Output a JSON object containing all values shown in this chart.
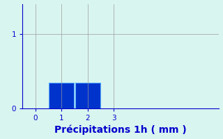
{
  "xlabel": "Précipitations 1h ( mm )",
  "xlabel_color": "#0000cc",
  "bar_values": [
    0.35,
    0.35
  ],
  "bar_positions": [
    1.0,
    2.0
  ],
  "bar_color": "#0033cc",
  "bar_width": 0.95,
  "bar_edge_color": "#55aaff",
  "xlim": [
    -0.5,
    7.0
  ],
  "ylim": [
    0,
    1.4
  ],
  "yticks": [
    0,
    1
  ],
  "xticks": [
    0,
    1,
    2,
    3
  ],
  "background_color": "#d9f5ef",
  "grid_color": "#999999",
  "tick_color": "#0000cc",
  "axis_color": "#0000cc",
  "xlabel_fontsize": 10,
  "tick_fontsize": 7.5
}
